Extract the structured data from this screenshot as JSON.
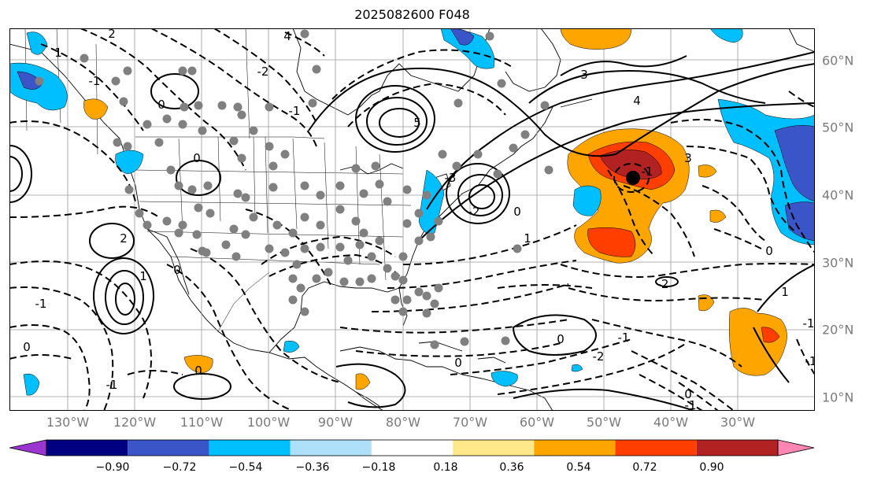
{
  "title": "2025082600 F048",
  "lon_labels": [
    "130°W",
    "120°W",
    "110°W",
    "100°W",
    "90°W",
    "80°W",
    "70°W",
    "60°W",
    "50°W",
    "40°W",
    "30°W"
  ],
  "lat_labels": [
    "60°N",
    "50°N",
    "40°N",
    "30°N",
    "20°N",
    "10°N"
  ],
  "colorbar": {
    "ticks": [
      "−0.90",
      "−0.72",
      "−0.54",
      "−0.36",
      "−0.18",
      "0.18",
      "0.36",
      "0.54",
      "0.72",
      "0.90"
    ],
    "colors": [
      "#9a35d0",
      "#000080",
      "#3a55c8",
      "#00bfff",
      "#aee0fa",
      "#ffffff",
      "#ffe88a",
      "#ffa500",
      "#ff3e00",
      "#b22222",
      "#ff85b3"
    ]
  },
  "contour_labels": [
    "2",
    "1",
    "0",
    "-1",
    "4",
    "3",
    "5",
    "0",
    "-1",
    "-2",
    "-3",
    "2",
    "1",
    "0",
    "0",
    "-1",
    "-2",
    "3",
    "4",
    "-1",
    "0",
    "1",
    "0",
    "-2",
    "0",
    "-1",
    "0",
    "-1",
    "-2",
    "0",
    "-1",
    "1",
    "0",
    "-1",
    "-1"
  ],
  "markers": {
    "storm_center": "black-dot",
    "stations": "gray-dots"
  }
}
